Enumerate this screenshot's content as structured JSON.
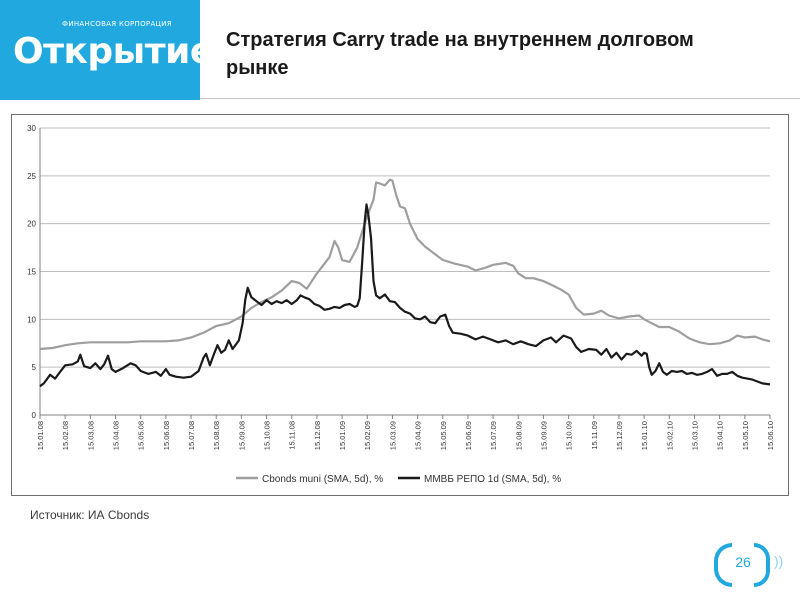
{
  "header": {
    "logo_sub": "ФИНАНСОВАЯ КОРПОРАЦИЯ",
    "logo_name": "Открытие",
    "title": "Стратегия Carry trade на внутреннем долговом рынке"
  },
  "footer": {
    "source": "Источник: ИА Cbonds",
    "page_number": "26",
    "page_dots": "))"
  },
  "colors": {
    "brand": "#21a9df",
    "muni": "#9e9e9e",
    "repo": "#1a1a1a",
    "grid": "#bdbdbd"
  },
  "chart_data": {
    "type": "line",
    "title": "",
    "xlabel": "",
    "ylabel": "",
    "ylim": [
      0,
      30
    ],
    "y_ticks": [
      0,
      5,
      10,
      15,
      20,
      25,
      30
    ],
    "categories": [
      "15.01.08",
      "15.02.08",
      "15.03.08",
      "15.04.08",
      "15.05.08",
      "15.06.08",
      "15.07.08",
      "15.08.08",
      "15.09.08",
      "15.10.08",
      "15.11.08",
      "15.12.08",
      "15.01.09",
      "15.02.09",
      "15.03.09",
      "15.04.09",
      "15.05.09",
      "15.06.09",
      "15.07.09",
      "15.08.09",
      "15.09.09",
      "15.10.09",
      "15.11.09",
      "15.12.09",
      "15.01.10",
      "15.02.10",
      "15.03.10",
      "15.04.10",
      "15.05.10",
      "15.06.10"
    ],
    "x_index_range": [
      0,
      29
    ],
    "legend_position": "bottom",
    "grid": true,
    "series": [
      {
        "name": "Cbonds muni (SMA, 5d), %",
        "points": [
          [
            0,
            6.9
          ],
          [
            0.5,
            7.0
          ],
          [
            1,
            7.3
          ],
          [
            1.5,
            7.5
          ],
          [
            2,
            7.6
          ],
          [
            2.5,
            7.6
          ],
          [
            3,
            7.6
          ],
          [
            3.5,
            7.6
          ],
          [
            4,
            7.7
          ],
          [
            4.5,
            7.7
          ],
          [
            5,
            7.7
          ],
          [
            5.5,
            7.8
          ],
          [
            6,
            8.1
          ],
          [
            6.5,
            8.6
          ],
          [
            7,
            9.3
          ],
          [
            7.5,
            9.6
          ],
          [
            8,
            10.3
          ],
          [
            8.4,
            11.2
          ],
          [
            8.8,
            11.8
          ],
          [
            9.2,
            12.3
          ],
          [
            9.6,
            13.0
          ],
          [
            10,
            14.0
          ],
          [
            10.3,
            13.8
          ],
          [
            10.6,
            13.2
          ],
          [
            11,
            14.8
          ],
          [
            11.3,
            15.8
          ],
          [
            11.5,
            16.5
          ],
          [
            11.7,
            18.2
          ],
          [
            11.85,
            17.5
          ],
          [
            12,
            16.2
          ],
          [
            12.3,
            16.0
          ],
          [
            12.6,
            17.5
          ],
          [
            12.9,
            20.0
          ],
          [
            13.1,
            21.5
          ],
          [
            13.25,
            22.5
          ],
          [
            13.35,
            24.3
          ],
          [
            13.5,
            24.2
          ],
          [
            13.7,
            24.0
          ],
          [
            13.9,
            24.6
          ],
          [
            14.0,
            24.5
          ],
          [
            14.15,
            23.0
          ],
          [
            14.3,
            21.8
          ],
          [
            14.5,
            21.6
          ],
          [
            14.7,
            20.0
          ],
          [
            15,
            18.4
          ],
          [
            15.3,
            17.6
          ],
          [
            15.6,
            17.0
          ],
          [
            16,
            16.2
          ],
          [
            16.5,
            15.8
          ],
          [
            17,
            15.5
          ],
          [
            17.3,
            15.1
          ],
          [
            17.7,
            15.4
          ],
          [
            18,
            15.7
          ],
          [
            18.5,
            15.9
          ],
          [
            18.8,
            15.6
          ],
          [
            19,
            14.8
          ],
          [
            19.3,
            14.3
          ],
          [
            19.6,
            14.3
          ],
          [
            20,
            14.0
          ],
          [
            20.4,
            13.5
          ],
          [
            20.7,
            13.1
          ],
          [
            21,
            12.6
          ],
          [
            21.3,
            11.2
          ],
          [
            21.6,
            10.5
          ],
          [
            22,
            10.6
          ],
          [
            22.3,
            10.9
          ],
          [
            22.6,
            10.4
          ],
          [
            23,
            10.1
          ],
          [
            23.4,
            10.3
          ],
          [
            23.8,
            10.4
          ],
          [
            24,
            10.0
          ],
          [
            24.3,
            9.6
          ],
          [
            24.6,
            9.2
          ],
          [
            25,
            9.2
          ],
          [
            25.4,
            8.7
          ],
          [
            25.8,
            8.0
          ],
          [
            26.2,
            7.6
          ],
          [
            26.6,
            7.4
          ],
          [
            27,
            7.5
          ],
          [
            27.4,
            7.8
          ],
          [
            27.7,
            8.3
          ],
          [
            28,
            8.1
          ],
          [
            28.4,
            8.2
          ],
          [
            28.7,
            7.9
          ],
          [
            29,
            7.7
          ]
        ]
      },
      {
        "name": "ММВБ РЕПО 1d (SMA, 5d), %",
        "points": [
          [
            0,
            3.0
          ],
          [
            0.15,
            3.3
          ],
          [
            0.4,
            4.2
          ],
          [
            0.6,
            3.8
          ],
          [
            0.8,
            4.5
          ],
          [
            1,
            5.2
          ],
          [
            1.3,
            5.3
          ],
          [
            1.5,
            5.6
          ],
          [
            1.6,
            6.3
          ],
          [
            1.75,
            5.1
          ],
          [
            2,
            4.9
          ],
          [
            2.2,
            5.4
          ],
          [
            2.4,
            4.8
          ],
          [
            2.55,
            5.3
          ],
          [
            2.7,
            6.2
          ],
          [
            2.85,
            4.8
          ],
          [
            3,
            4.5
          ],
          [
            3.3,
            4.9
          ],
          [
            3.6,
            5.4
          ],
          [
            3.8,
            5.2
          ],
          [
            4,
            4.6
          ],
          [
            4.3,
            4.3
          ],
          [
            4.6,
            4.5
          ],
          [
            4.8,
            4.1
          ],
          [
            5,
            4.8
          ],
          [
            5.15,
            4.2
          ],
          [
            5.4,
            4.0
          ],
          [
            5.7,
            3.9
          ],
          [
            6,
            4.0
          ],
          [
            6.3,
            4.6
          ],
          [
            6.5,
            6.0
          ],
          [
            6.6,
            6.4
          ],
          [
            6.75,
            5.2
          ],
          [
            6.9,
            6.3
          ],
          [
            7.05,
            7.3
          ],
          [
            7.2,
            6.5
          ],
          [
            7.35,
            6.8
          ],
          [
            7.5,
            7.8
          ],
          [
            7.65,
            6.9
          ],
          [
            7.9,
            7.8
          ],
          [
            8.05,
            9.6
          ],
          [
            8.15,
            12.0
          ],
          [
            8.25,
            13.3
          ],
          [
            8.4,
            12.3
          ],
          [
            8.6,
            11.9
          ],
          [
            8.8,
            11.5
          ],
          [
            9.0,
            12.0
          ],
          [
            9.2,
            11.6
          ],
          [
            9.4,
            11.9
          ],
          [
            9.6,
            11.7
          ],
          [
            9.8,
            12.0
          ],
          [
            10,
            11.6
          ],
          [
            10.2,
            12.0
          ],
          [
            10.35,
            12.5
          ],
          [
            10.5,
            12.3
          ],
          [
            10.7,
            12.1
          ],
          [
            10.9,
            11.6
          ],
          [
            11.1,
            11.4
          ],
          [
            11.3,
            11.0
          ],
          [
            11.5,
            11.1
          ],
          [
            11.7,
            11.3
          ],
          [
            11.9,
            11.2
          ],
          [
            12.1,
            11.5
          ],
          [
            12.3,
            11.6
          ],
          [
            12.5,
            11.3
          ],
          [
            12.6,
            11.4
          ],
          [
            12.7,
            12.2
          ],
          [
            12.8,
            16.0
          ],
          [
            12.9,
            20.2
          ],
          [
            12.97,
            22.0
          ],
          [
            13.05,
            20.8
          ],
          [
            13.15,
            18.5
          ],
          [
            13.25,
            14.0
          ],
          [
            13.35,
            12.5
          ],
          [
            13.5,
            12.2
          ],
          [
            13.7,
            12.6
          ],
          [
            13.9,
            11.9
          ],
          [
            14.1,
            11.8
          ],
          [
            14.3,
            11.2
          ],
          [
            14.5,
            10.8
          ],
          [
            14.7,
            10.6
          ],
          [
            14.9,
            10.1
          ],
          [
            15.1,
            10.0
          ],
          [
            15.3,
            10.3
          ],
          [
            15.5,
            9.7
          ],
          [
            15.7,
            9.6
          ],
          [
            15.9,
            10.3
          ],
          [
            16.1,
            10.5
          ],
          [
            16.25,
            9.3
          ],
          [
            16.4,
            8.6
          ],
          [
            16.7,
            8.5
          ],
          [
            17,
            8.3
          ],
          [
            17.3,
            7.9
          ],
          [
            17.6,
            8.2
          ],
          [
            17.9,
            7.9
          ],
          [
            18.2,
            7.6
          ],
          [
            18.5,
            7.8
          ],
          [
            18.8,
            7.4
          ],
          [
            19.1,
            7.7
          ],
          [
            19.4,
            7.4
          ],
          [
            19.7,
            7.2
          ],
          [
            20,
            7.8
          ],
          [
            20.3,
            8.1
          ],
          [
            20.5,
            7.6
          ],
          [
            20.8,
            8.3
          ],
          [
            21.1,
            8.0
          ],
          [
            21.3,
            7.1
          ],
          [
            21.5,
            6.6
          ],
          [
            21.8,
            6.9
          ],
          [
            22.1,
            6.8
          ],
          [
            22.3,
            6.3
          ],
          [
            22.5,
            6.9
          ],
          [
            22.7,
            6.0
          ],
          [
            22.9,
            6.5
          ],
          [
            23.1,
            5.8
          ],
          [
            23.3,
            6.4
          ],
          [
            23.5,
            6.3
          ],
          [
            23.7,
            6.7
          ],
          [
            23.9,
            6.2
          ],
          [
            24,
            6.5
          ],
          [
            24.1,
            6.4
          ],
          [
            24.2,
            5.0
          ],
          [
            24.3,
            4.2
          ],
          [
            24.45,
            4.6
          ],
          [
            24.6,
            5.4
          ],
          [
            24.75,
            4.5
          ],
          [
            24.9,
            4.2
          ],
          [
            25.1,
            4.6
          ],
          [
            25.3,
            4.5
          ],
          [
            25.5,
            4.6
          ],
          [
            25.7,
            4.3
          ],
          [
            25.9,
            4.4
          ],
          [
            26.1,
            4.2
          ],
          [
            26.3,
            4.3
          ],
          [
            26.5,
            4.5
          ],
          [
            26.7,
            4.8
          ],
          [
            26.9,
            4.1
          ],
          [
            27.1,
            4.3
          ],
          [
            27.3,
            4.3
          ],
          [
            27.5,
            4.5
          ],
          [
            27.7,
            4.1
          ],
          [
            27.9,
            3.9
          ],
          [
            28.1,
            3.8
          ],
          [
            28.3,
            3.7
          ],
          [
            28.5,
            3.5
          ],
          [
            28.7,
            3.3
          ],
          [
            29,
            3.2
          ]
        ]
      }
    ]
  }
}
